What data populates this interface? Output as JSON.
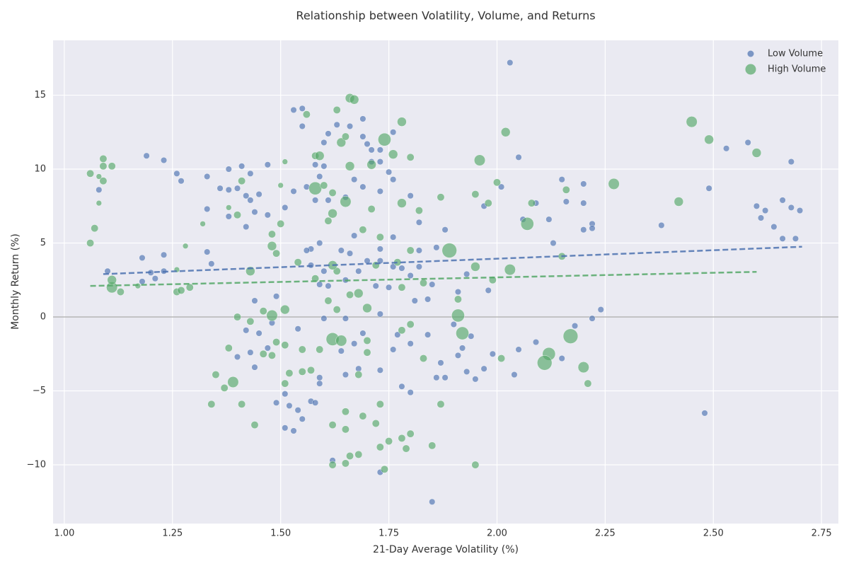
{
  "chart_data": {
    "type": "scatter",
    "title": "Relationship between Volatility, Volume, and Returns",
    "x_label": "21-Day Average Volatility (%)",
    "y_label": "Monthly Return (%)",
    "xlim": [
      0.974,
      2.789
    ],
    "ylim": [
      -13.97,
      18.71
    ],
    "xticks": [
      {
        "value": 1.0,
        "label": "1.00"
      },
      {
        "value": 1.25,
        "label": "1.25"
      },
      {
        "value": 1.5,
        "label": "1.50"
      },
      {
        "value": 1.75,
        "label": "1.75"
      },
      {
        "value": 2.0,
        "label": "2.00"
      },
      {
        "value": 2.25,
        "label": "2.25"
      },
      {
        "value": 2.5,
        "label": "2.50"
      },
      {
        "value": 2.75,
        "label": "2.75"
      }
    ],
    "yticks": [
      {
        "value": -10,
        "label": "−10"
      },
      {
        "value": -5,
        "label": "−5"
      },
      0,
      5,
      10,
      15
    ],
    "grid": true,
    "legend": "upper right",
    "reference_line": 0,
    "series": [
      {
        "name": "Low Volume",
        "color": "#4c72b0",
        "x": [
          2.03,
          1.55,
          1.53,
          1.55,
          1.69,
          1.63,
          1.66,
          1.61,
          1.76,
          1.69,
          1.7,
          1.73,
          1.71,
          1.6,
          1.19,
          1.23,
          1.38,
          1.41,
          1.47,
          1.58,
          1.6,
          1.73,
          1.71,
          1.26,
          1.27,
          1.33,
          1.43,
          1.59,
          1.67,
          1.76,
          1.75,
          1.08,
          1.36,
          1.38,
          1.4,
          1.42,
          1.43,
          1.45,
          1.53,
          1.56,
          1.65,
          1.69,
          1.73,
          1.8,
          2.01,
          1.33,
          1.38,
          1.42,
          1.44,
          1.47,
          1.51,
          1.58,
          1.61,
          1.82,
          1.97,
          2.06,
          2.09,
          2.12,
          2.15,
          2.16,
          2.2,
          2.2,
          2.05,
          2.53,
          2.58,
          2.49,
          2.66,
          2.68,
          2.6,
          2.62,
          2.64,
          2.61,
          2.68,
          2.7,
          2.69,
          2.66,
          2.22,
          2.22,
          2.2,
          2.38,
          2.13,
          2.24,
          2.22,
          2.18,
          2.15,
          2.48,
          2.09,
          2.05,
          2.04,
          1.99,
          1.97,
          1.94,
          1.92,
          1.91,
          1.9,
          1.87,
          1.88,
          1.86,
          1.93,
          1.95,
          1.85,
          1.78,
          1.8,
          1.73,
          1.62,
          1.53,
          1.51,
          1.55,
          1.52,
          1.54,
          1.57,
          1.58,
          1.49,
          1.51,
          1.59,
          1.59,
          1.65,
          1.68,
          1.73,
          1.44,
          1.4,
          1.43,
          1.47,
          1.45,
          1.42,
          1.48,
          1.54,
          1.6,
          1.65,
          1.69,
          1.73,
          1.77,
          1.8,
          1.84,
          1.76,
          1.67,
          1.64,
          1.81,
          1.84,
          1.91,
          1.98,
          1.85,
          1.8,
          1.78,
          1.82,
          1.76,
          1.73,
          1.7,
          1.66,
          1.64,
          1.57,
          1.56,
          1.59,
          1.67,
          1.73,
          1.76,
          1.82,
          1.86,
          1.88,
          1.93,
          1.33,
          1.34,
          1.23,
          1.18,
          1.23,
          1.21,
          1.18,
          1.1,
          1.2,
          1.44,
          1.49,
          1.61,
          1.59,
          1.68,
          1.65,
          1.75,
          1.72,
          1.57,
          1.6
        ],
        "values": [
          17.2,
          14.1,
          14.0,
          12.9,
          13.4,
          13.0,
          12.9,
          12.4,
          12.5,
          12.2,
          11.7,
          11.3,
          11.3,
          11.8,
          10.9,
          10.6,
          10.0,
          10.2,
          10.3,
          10.3,
          10.2,
          10.5,
          10.5,
          9.7,
          9.2,
          9.5,
          9.7,
          9.5,
          9.3,
          9.3,
          9.8,
          8.6,
          8.7,
          8.6,
          8.7,
          8.2,
          7.9,
          8.3,
          8.5,
          8.8,
          8.1,
          8.8,
          8.5,
          8.2,
          8.8,
          7.3,
          6.8,
          6.1,
          7.1,
          6.9,
          7.4,
          7.9,
          7.9,
          6.4,
          7.5,
          6.6,
          7.7,
          6.6,
          9.3,
          7.8,
          9.0,
          7.7,
          10.8,
          11.4,
          11.8,
          8.7,
          7.9,
          10.5,
          7.5,
          7.2,
          6.1,
          6.7,
          7.4,
          7.2,
          5.3,
          5.3,
          6.3,
          6.0,
          5.9,
          6.2,
          5.0,
          0.5,
          -0.1,
          -0.6,
          -2.8,
          -6.5,
          -1.7,
          -2.2,
          -3.9,
          -2.5,
          -3.5,
          -1.3,
          -2.1,
          -2.6,
          -0.5,
          -3.1,
          -4.1,
          -4.1,
          -3.7,
          -4.2,
          -12.5,
          -4.7,
          -5.1,
          -10.5,
          -9.7,
          -7.7,
          -7.5,
          -6.9,
          -6.0,
          -6.3,
          -5.7,
          -5.8,
          -5.8,
          -5.2,
          -4.5,
          -4.1,
          -3.9,
          -3.5,
          -3.6,
          -3.4,
          -2.7,
          -2.4,
          -2.1,
          -1.1,
          -0.9,
          -0.4,
          -0.8,
          -0.1,
          -0.1,
          -1.1,
          0.2,
          -1.2,
          -1.8,
          -1.2,
          -2.2,
          -1.8,
          -2.3,
          1.1,
          1.2,
          1.7,
          1.8,
          2.2,
          2.8,
          3.3,
          3.4,
          3.4,
          3.8,
          3.8,
          4.3,
          4.5,
          4.6,
          4.5,
          5.0,
          5.5,
          4.6,
          5.4,
          4.5,
          4.7,
          5.9,
          2.9,
          4.4,
          3.6,
          4.2,
          4.0,
          3.1,
          2.6,
          2.4,
          3.1,
          3.0,
          1.1,
          1.4,
          2.1,
          2.2,
          3.1,
          2.5,
          2.0,
          2.1,
          3.5,
          3.1
        ]
      },
      {
        "name": "High Volume",
        "color": "#55a868",
        "x": [
          1.06,
          1.06,
          1.09,
          1.09,
          1.11,
          1.08,
          1.09,
          1.08,
          1.07,
          1.11,
          1.11,
          1.13,
          1.17,
          1.26,
          1.27,
          1.29,
          1.28,
          1.32,
          1.26,
          1.38,
          1.4,
          1.41,
          1.43,
          1.48,
          1.48,
          1.49,
          1.5,
          1.5,
          1.51,
          1.56,
          1.58,
          1.59,
          1.58,
          1.6,
          1.62,
          1.61,
          1.62,
          1.63,
          1.64,
          1.65,
          1.66,
          1.67,
          1.65,
          1.66,
          1.71,
          1.71,
          1.74,
          1.76,
          1.78,
          1.78,
          1.8,
          1.82,
          1.87,
          1.8,
          1.89,
          1.96,
          1.95,
          1.98,
          2.0,
          2.02,
          2.07,
          2.08,
          2.03,
          1.95,
          1.91,
          1.91,
          1.92,
          2.01,
          2.12,
          2.11,
          2.17,
          2.2,
          2.21,
          2.16,
          2.15,
          2.27,
          2.42,
          2.45,
          2.49,
          2.6,
          1.73,
          1.69,
          1.68,
          1.66,
          1.7,
          1.63,
          1.61,
          1.48,
          1.51,
          1.46,
          1.4,
          1.43,
          1.62,
          1.64,
          1.7,
          1.7,
          1.8,
          1.78,
          1.83,
          1.59,
          1.55,
          1.46,
          1.48,
          1.51,
          1.49,
          1.38,
          1.39,
          1.37,
          1.35,
          1.34,
          1.41,
          1.44,
          1.51,
          1.52,
          1.55,
          1.57,
          1.68,
          1.73,
          1.65,
          1.62,
          1.65,
          1.69,
          1.72,
          1.75,
          1.73,
          1.78,
          1.8,
          1.79,
          1.85,
          1.87,
          1.66,
          1.68,
          1.65,
          1.62,
          1.74,
          1.95,
          1.54,
          1.58,
          1.63,
          1.62,
          1.72,
          1.77,
          1.78,
          1.83,
          1.99
        ],
        "values": [
          5.0,
          9.7,
          10.7,
          10.2,
          10.2,
          9.5,
          9.2,
          7.7,
          6.0,
          2.0,
          2.5,
          1.7,
          2.1,
          1.7,
          1.8,
          2.0,
          4.8,
          6.3,
          3.2,
          7.4,
          6.9,
          9.2,
          3.1,
          5.6,
          4.8,
          4.3,
          6.3,
          8.9,
          10.5,
          13.7,
          10.9,
          10.9,
          8.7,
          8.9,
          7.0,
          6.5,
          8.4,
          14.0,
          11.8,
          12.2,
          14.8,
          14.7,
          7.8,
          10.2,
          10.3,
          7.3,
          12.0,
          11.0,
          13.2,
          7.7,
          10.8,
          7.2,
          8.1,
          4.5,
          4.5,
          10.6,
          8.3,
          7.7,
          9.1,
          12.5,
          6.3,
          7.7,
          3.2,
          3.4,
          1.2,
          0.1,
          -1.1,
          -2.8,
          -2.5,
          -3.1,
          -1.3,
          -3.4,
          -4.5,
          8.6,
          4.1,
          9.0,
          7.8,
          13.2,
          12.0,
          11.1,
          5.4,
          5.9,
          1.6,
          1.5,
          0.6,
          0.5,
          1.1,
          0.1,
          0.5,
          0.4,
          0.0,
          -0.3,
          -1.5,
          -1.6,
          -1.6,
          -2.4,
          -0.5,
          -0.9,
          -2.8,
          -2.2,
          -2.2,
          -2.5,
          -2.6,
          -1.9,
          -1.7,
          -2.1,
          -4.4,
          -4.8,
          -3.9,
          -5.9,
          -5.9,
          -7.3,
          -4.5,
          -3.8,
          -3.7,
          -3.6,
          -3.9,
          -5.9,
          -6.4,
          -7.3,
          -7.6,
          -6.7,
          -7.2,
          -8.4,
          -8.8,
          -8.2,
          -7.9,
          -8.9,
          -8.7,
          -5.9,
          -9.4,
          -9.3,
          -9.9,
          -10.0,
          -10.3,
          -10.0,
          3.7,
          2.6,
          3.1,
          3.5,
          3.5,
          3.7,
          2.0,
          2.3,
          2.5
        ],
        "sizes": [
          2,
          2,
          2,
          2,
          2,
          1.5,
          2,
          1.5,
          2,
          3,
          2.5,
          2,
          1.5,
          2,
          2,
          2,
          1.5,
          1.5,
          1.5,
          1.5,
          2,
          2,
          2.5,
          2,
          2.5,
          2,
          2,
          1.5,
          1.5,
          2,
          2,
          2.5,
          3.5,
          2,
          2.5,
          2,
          2,
          2,
          2.5,
          2,
          2.5,
          2.5,
          3,
          2.5,
          2.5,
          2,
          3.5,
          2.5,
          2.5,
          2.5,
          2,
          2,
          2,
          2,
          4,
          3,
          2,
          2,
          2,
          2.5,
          3.5,
          2,
          3,
          2.5,
          2,
          3.5,
          3.5,
          2,
          3.5,
          4,
          4,
          3,
          2,
          2,
          2,
          3,
          2.5,
          3,
          2.5,
          2.5,
          2,
          2,
          2.5,
          2,
          2.5,
          2,
          2,
          3,
          2.5,
          2,
          2,
          2,
          3.5,
          3,
          2,
          2,
          2,
          2,
          2,
          2,
          2,
          2,
          2,
          2,
          2,
          2,
          3,
          2,
          2,
          2,
          2,
          2,
          2,
          2,
          2,
          2,
          2,
          2,
          2,
          2,
          2,
          2,
          2,
          2,
          2,
          2,
          2,
          2,
          2,
          2,
          2,
          2,
          2,
          2,
          2,
          2,
          2,
          2,
          2,
          2.5,
          2,
          2,
          2,
          2,
          2
        ]
      }
    ],
    "trend_lines": [
      {
        "color": "#4c72b0",
        "x": [
          1.09,
          2.705
        ],
        "values": [
          2.9,
          4.75
        ]
      },
      {
        "color": "#55a868",
        "x": [
          1.06,
          2.6
        ],
        "values": [
          2.1,
          3.05
        ]
      }
    ]
  }
}
